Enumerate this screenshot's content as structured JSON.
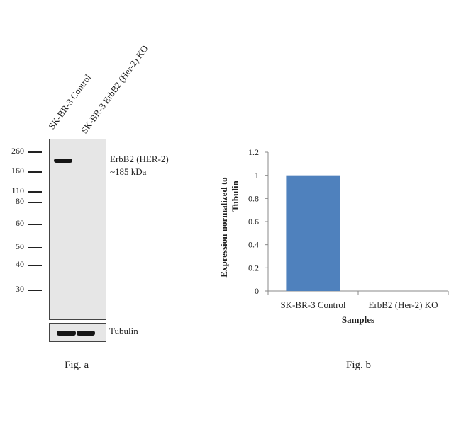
{
  "figure_a": {
    "lanes": [
      "SK-BR-3 Control",
      "SK-BR-3 ErbB2 (Her-2) KO"
    ],
    "markers": [
      "260",
      "160",
      "110",
      "80",
      "60",
      "50",
      "40",
      "30"
    ],
    "band_label_line1": "ErbB2 (HER-2)",
    "band_label_line2": "~185 kDa",
    "loading_label": "Tubulin",
    "caption": "Fig. a"
  },
  "figure_b": {
    "caption": "Fig. b"
  },
  "chart_data": {
    "type": "bar",
    "categories": [
      "SK-BR-3 Control",
      "ErbB2 (Her-2) KO"
    ],
    "values": [
      1,
      0
    ],
    "xlabel": "Samples",
    "ylabel_line1": "Expression normalized to",
    "ylabel_line2": "Tubulin",
    "ylim": [
      0,
      1.2
    ],
    "yticks": [
      "0",
      "0.2",
      "0.4",
      "0.6",
      "0.8",
      "1",
      "1.2"
    ],
    "bar_color": "#4f81bd",
    "grid": false
  }
}
